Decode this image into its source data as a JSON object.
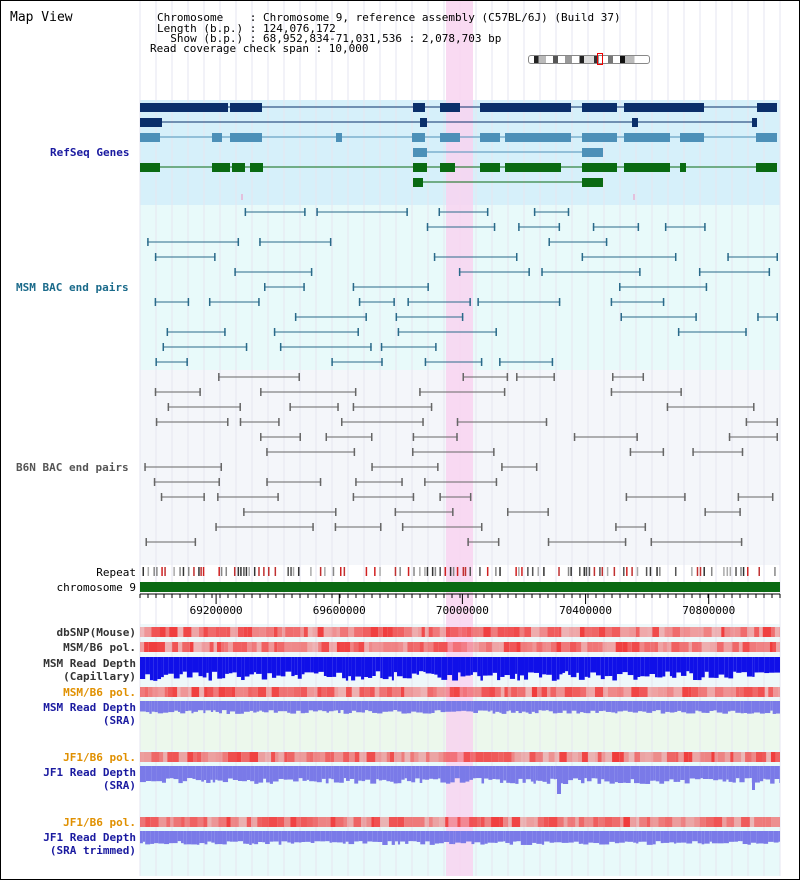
{
  "title": "Map View",
  "header": {
    "chromosome_label": "Chromosome    : Chromosome 9, reference assembly (C57BL/6J) (Build 37)",
    "length_label": "Length (b.p.) : 124,076,172",
    "show_label": "  Show (b.p.) : 68,952,834-71,031,536 : 2,078,703 bp",
    "coverage_label": "Read coverage check span : 10,000"
  },
  "tracks": {
    "refseq": "RefSeq Genes",
    "msm_bac": "MSM BAC end pairs",
    "b6n_bac": "B6N BAC end pairs",
    "repeat": "Repeat",
    "chromosome": "chromosome 9",
    "dbsnp": "dbSNP(Mouse)",
    "msm_pol_1": "MSM/B6 pol.",
    "msm_depth_cap_1": "MSM Read Depth",
    "msm_depth_cap_2": "(Capillary)",
    "msm_pol_2": "MSM/B6 pol.",
    "msm_depth_sra_1": "MSM Read Depth",
    "msm_depth_sra_2": "(SRA)",
    "jf1_pol_1": "JF1/B6 pol.",
    "jf1_depth_1": "JF1 Read Depth",
    "jf1_depth_2": "(SRA)",
    "jf1_pol_2": "JF1/B6 pol.",
    "jf1_trim_1": "JF1 Read Depth",
    "jf1_trim_2": "(SRA trimmed)"
  },
  "ruler": {
    "ticks": [
      "69200000",
      "69600000",
      "70000000",
      "70400000",
      "70800000"
    ],
    "tick_values": [
      69200000,
      69600000,
      70000000,
      70400000,
      70800000
    ],
    "range": [
      68952834,
      71031536
    ]
  },
  "colors": {
    "refseq_bg": "#d6f0fa",
    "msm_bg": "#e8fafa",
    "b6n_bg": "#f4f6fa",
    "highlight": "#f8d4f0",
    "gene_dark": "#0b2f6a",
    "gene_light": "#4d90b8",
    "gene_green": "#0a6a12",
    "msm_line": "#2a6a8a",
    "b6n_line": "#666666",
    "depth_blue": "#1010e8",
    "depth_light": "#7a7ae8",
    "pol_red": "#f03c3c",
    "label_blue": "#1a1aa0",
    "label_teal": "#1a6a8a",
    "label_orange": "#e09000"
  }
}
